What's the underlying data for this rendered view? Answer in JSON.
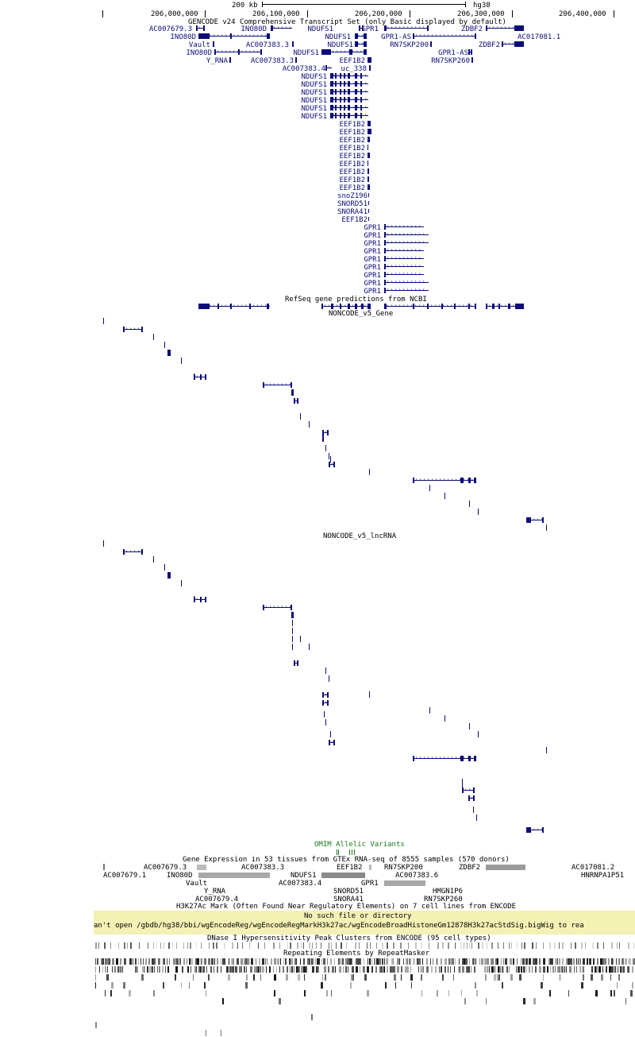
{
  "ruler": {
    "scale_label": "200 kb",
    "assembly": "hg38",
    "positions": [
      "206,000,000",
      "206,100,000",
      "206,200,000",
      "206,300,000",
      "206,400,000"
    ]
  },
  "tracks": {
    "gencode_title": "GENCODE v24 Comprehensive Transcript Set (only Basic displayed by default)",
    "refseq_title": "RefSeq gene predictions from NCBI",
    "noncode_gene_title": "NONCODE_v5_Gene",
    "noncode_lncrna_title": "NONCODE_v5_lncRNA",
    "omim_title": "OMIM Allelic Variants",
    "gtex_title": "Gene Expression in 53 tissues from GTEx RNA-seq of 8555 samples (570 donors)",
    "h3k27ac_title": "H3K27Ac Mark (Often Found Near Regulatory Elements) on 7 cell lines from ENCODE",
    "dnase_title": "DNase I Hypersensitivity Peak Clusters from ENCODE (95 cell types)",
    "rmsk_title": "Repeating Elements by RepeatMasker"
  },
  "error": {
    "line1": "No such file or directory",
    "line2": "an't open /gbdb/hg38/bbi/wgEncodeReg/wgEncodeRegMarkH3k27ac/wgEncodeBroadHistoneGm12878H3k27acStdSig.bigWig to rea"
  },
  "gencode_labels": {
    "ac007679_3": "AC007679.3",
    "ino80d_a": "INO80D",
    "ndufs1_a": "NDUFS1",
    "gpr1_a": "GPR1",
    "zdbf2_a": "ZDBF2",
    "ino80d_b": "INO80D",
    "ndufs1_b": "NDUFS1",
    "gpr1_as_a": "GPR1-AS",
    "ac017081_1": "AC017081.1",
    "vault": "Vault",
    "ac007383_3_a": "AC007383.3",
    "ndufs1_c": "NDUFS1",
    "rn7skp200": "RN7SKP200",
    "zdbf2_b": "ZDBF2",
    "ino80d_c": "INO80D",
    "ndufs1_d": "NDUFS1",
    "gpr1_as_b": "GPR1-AS",
    "y_rna": "Y_RNA",
    "ac007383_3_b": "AC007383.3",
    "eef1b2_a": "EEF1B2",
    "rn7skp260": "RN7SKP260",
    "ac007383_4": "AC007383.4",
    "uc_338": "uc_338",
    "ndufs1_rep": "NDUFS1",
    "eef1b2_rep": "EEF1B2",
    "snoz196": "snoZ196",
    "snord51": "SNORD51",
    "snora41": "SNORA41",
    "gpr1_rep": "GPR1"
  },
  "gtex_labels": {
    "ac007679_3": "AC007679.3",
    "ac007383_3": "AC007383.3",
    "eef1b2": "EEF1B2",
    "rn7skp200": "RN7SKP200",
    "zdbf2": "ZDBF2",
    "ac017081_2": "AC017081.2",
    "ac007679_1": "AC007679.1",
    "ino80d": "INO80D",
    "ndufs1": "NDUFS1",
    "ac007383_6": "AC007383.6",
    "hmnrnpa1p51": "HNRNPA1P51",
    "vault": "Vault",
    "ac007383_4": "AC007383.4",
    "gpr1": "GPR1",
    "hmgn1p6": "HMGN1P6",
    "y_rna": "Y_RNA",
    "snord51": "SNORD51",
    "ac007679_4": "AC007679.4",
    "snora41": "SNORA41",
    "rn7skp260": "RN7SKP260"
  },
  "colors": {
    "gene": "#0c0c78",
    "omim": "#1a7a1a",
    "gtex_bar": "#aaaaaa",
    "error_bg": "#f3f1b4"
  }
}
